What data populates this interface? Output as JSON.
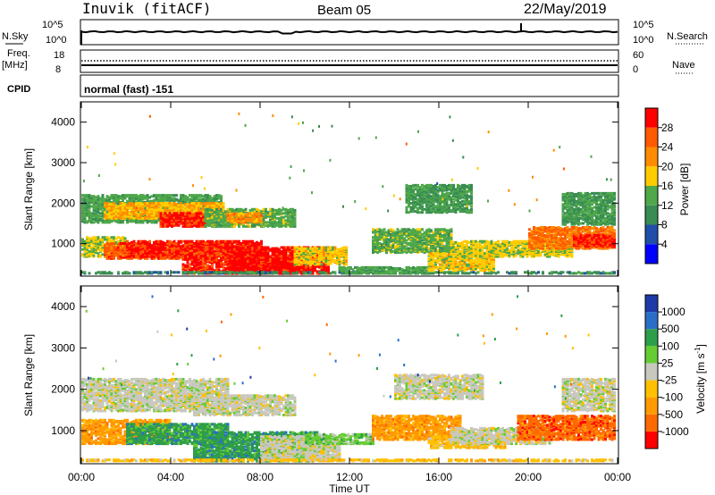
{
  "header": {
    "station": "Inuvik (fitACF)",
    "beam": "Beam 05",
    "date": "22/May/2019"
  },
  "strip1": {
    "left_label": "N.Sky",
    "left_top": "10^5",
    "left_bottom": "10^0",
    "right_top": "10^5",
    "right_bottom": "10^0",
    "right_label": "N.Search"
  },
  "strip2": {
    "left_label_1": "Freq.",
    "left_label_2": "[MHz]",
    "left_top": "18",
    "left_bottom": "8",
    "right_top": "60",
    "right_bottom": "0",
    "right_label": "Nave"
  },
  "cpid": {
    "label": "CPID",
    "value": "normal (fast) -151"
  },
  "colors": {
    "power": [
      "#0000ff",
      "#1f4fa8",
      "#3a8c55",
      "#4fa84a",
      "#ffcc00",
      "#ff8c00",
      "#ff5a00",
      "#ff0000"
    ],
    "velocity": [
      "#ff0000",
      "#ff6a00",
      "#ff9a00",
      "#ffc000",
      "#c8c8bf",
      "#66cc33",
      "#2e9e4a",
      "#2b6ec8",
      "#1e3aa8"
    ]
  },
  "chart_data": [
    {
      "type": "heatmap",
      "panel": "power",
      "ylabel": "Slant Range [km]",
      "ylim": [
        200,
        4500
      ],
      "yticks": [
        "1000",
        "2000",
        "3000",
        "4000"
      ],
      "colorbar_label": "Power [dB]",
      "colorbar_ticks": [
        "4",
        "8",
        "12",
        "16",
        "20",
        "24",
        "28"
      ],
      "colorbar_range": [
        0,
        32
      ],
      "blobs": [
        {
          "t0": 0.0,
          "t1": 6.2,
          "r0": 1550,
          "r1": 2250,
          "v": 13
        },
        {
          "t0": 1.0,
          "t1": 6.3,
          "r0": 1650,
          "r1": 2050,
          "v": 20
        },
        {
          "t0": 3.5,
          "t1": 5.5,
          "r0": 1450,
          "r1": 1800,
          "v": 29
        },
        {
          "t0": 5.5,
          "t1": 9.5,
          "r0": 1450,
          "r1": 1900,
          "v": 14
        },
        {
          "t0": 6.5,
          "t1": 8.0,
          "r0": 1550,
          "r1": 1800,
          "v": 22
        },
        {
          "t0": 0.0,
          "t1": 2.0,
          "r0": 700,
          "r1": 1200,
          "v": 16
        },
        {
          "t0": 1.0,
          "t1": 6.5,
          "r0": 650,
          "r1": 1050,
          "v": 26
        },
        {
          "t0": 2.0,
          "t1": 8.0,
          "r0": 700,
          "r1": 1100,
          "v": 29
        },
        {
          "t0": 4.5,
          "t1": 10.0,
          "r0": 250,
          "r1": 700,
          "v": 29
        },
        {
          "t0": 6.5,
          "t1": 11.0,
          "r0": 200,
          "r1": 950,
          "v": 30
        },
        {
          "t0": 9.5,
          "t1": 11.8,
          "r0": 500,
          "r1": 950,
          "v": 18
        },
        {
          "t0": 0.0,
          "t1": 24.0,
          "r0": 180,
          "r1": 330,
          "v": 10
        },
        {
          "t0": 11.5,
          "t1": 15.5,
          "r0": 250,
          "r1": 450,
          "v": 13
        },
        {
          "t0": 13.0,
          "t1": 16.5,
          "r0": 800,
          "r1": 1400,
          "v": 14
        },
        {
          "t0": 14.5,
          "t1": 17.5,
          "r0": 1800,
          "r1": 2500,
          "v": 12
        },
        {
          "t0": 15.5,
          "t1": 18.5,
          "r0": 350,
          "r1": 800,
          "v": 18
        },
        {
          "t0": 16.5,
          "t1": 22.0,
          "r0": 700,
          "r1": 1100,
          "v": 17
        },
        {
          "t0": 20.0,
          "t1": 24.0,
          "r0": 900,
          "r1": 1450,
          "v": 24
        },
        {
          "t0": 22.0,
          "t1": 24.0,
          "r0": 950,
          "r1": 1250,
          "v": 29
        },
        {
          "t0": 21.5,
          "t1": 24.0,
          "r0": 1500,
          "r1": 2300,
          "v": 12
        }
      ]
    },
    {
      "type": "heatmap",
      "panel": "velocity",
      "ylabel": "Slant Range [km]",
      "ylim": [
        200,
        4500
      ],
      "yticks": [
        "1000",
        "2000",
        "3000",
        "4000"
      ],
      "colorbar_label": "Velocity [m s",
      "colorbar_label_sup": "-1",
      "colorbar_label_end": "]",
      "colorbar_ticks": [
        "-1000",
        "-500",
        "-100",
        "-25",
        "25",
        "100",
        "500",
        "1000"
      ],
      "xlabel": "Time UT",
      "xticks": [
        "00:00",
        "04:00",
        "08:00",
        "12:00",
        "16:00",
        "20:00",
        "00:00"
      ],
      "xlim": [
        0,
        24
      ],
      "blobs": [
        {
          "t0": 0.0,
          "t1": 6.5,
          "r0": 1500,
          "r1": 2300,
          "v": 4
        },
        {
          "t0": 5.0,
          "t1": 9.5,
          "r0": 1400,
          "r1": 1900,
          "v": 4
        },
        {
          "t0": 0.0,
          "t1": 4.0,
          "r0": 700,
          "r1": 1300,
          "v": 2
        },
        {
          "t0": 2.0,
          "t1": 6.5,
          "r0": 700,
          "r1": 1200,
          "v": 6
        },
        {
          "t0": 5.0,
          "t1": 10.5,
          "r0": 250,
          "r1": 1000,
          "v": 6
        },
        {
          "t0": 8.0,
          "t1": 11.5,
          "r0": 300,
          "r1": 900,
          "v": 4
        },
        {
          "t0": 10.0,
          "t1": 13.0,
          "r0": 700,
          "r1": 950,
          "v": 5
        },
        {
          "t0": 0.0,
          "t1": 24.0,
          "r0": 180,
          "r1": 330,
          "v": 3
        },
        {
          "t0": 13.0,
          "t1": 17.0,
          "r0": 800,
          "r1": 1400,
          "v": 2
        },
        {
          "t0": 14.0,
          "t1": 18.0,
          "r0": 1800,
          "r1": 2400,
          "v": 4
        },
        {
          "t0": 15.5,
          "t1": 19.0,
          "r0": 600,
          "r1": 900,
          "v": 3
        },
        {
          "t0": 16.5,
          "t1": 21.0,
          "r0": 700,
          "r1": 1100,
          "v": 4
        },
        {
          "t0": 19.5,
          "t1": 24.0,
          "r0": 800,
          "r1": 1400,
          "v": 1
        },
        {
          "t0": 21.5,
          "t1": 24.0,
          "r0": 1500,
          "r1": 2300,
          "v": 4
        }
      ]
    }
  ]
}
